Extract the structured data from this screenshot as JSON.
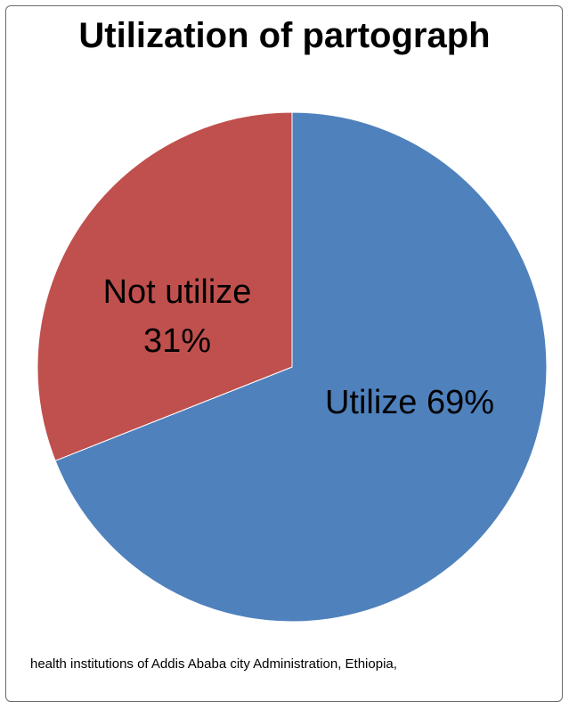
{
  "chart_data": {
    "type": "pie",
    "title": "Utilization of partograph",
    "slices": [
      {
        "label": "Utilize",
        "value": 69,
        "display": "Utilize 69%",
        "color": "#4f81bd"
      },
      {
        "label": "Not utilize",
        "value": 31,
        "display_lines": [
          "Not utilize",
          "31%"
        ],
        "color": "#c0504d"
      }
    ],
    "legend": "none"
  },
  "footnote": "health institutions of Addis Ababa city Administration, Ethiopia,"
}
